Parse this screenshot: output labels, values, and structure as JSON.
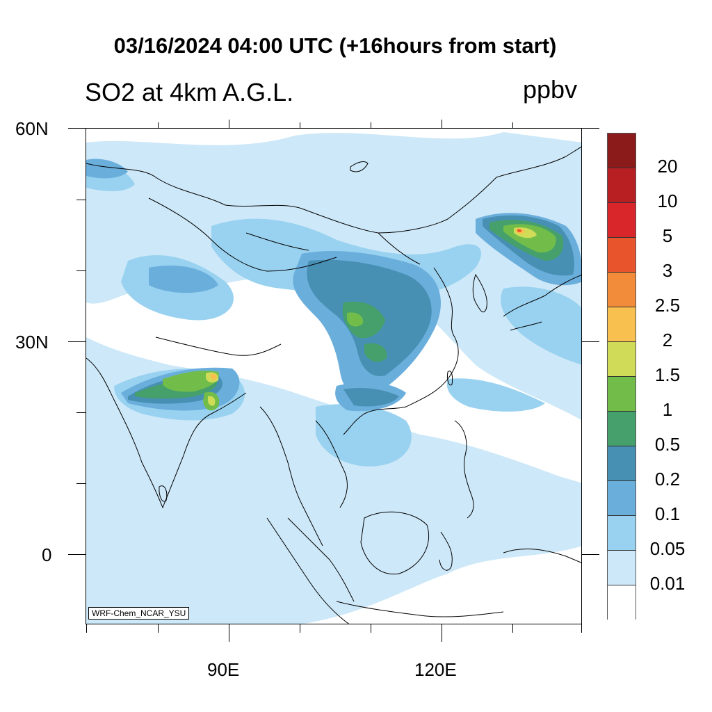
{
  "title": "03/16/2024 04:00 UTC (+16hours from start)",
  "subtitle": "SO2 at 4km A.G.L.",
  "units": "ppbv",
  "credit": "WRF-Chem_NCAR_YSU",
  "lat_labels": [
    "60N",
    "30N",
    "0"
  ],
  "lon_labels": [
    "90E",
    "120E"
  ],
  "colorbar": {
    "labels": [
      "20",
      "10",
      "5",
      "3",
      "2.5",
      "2",
      "1.5",
      "1",
      "0.5",
      "0.2",
      "0.1",
      "0.05",
      "0.01"
    ],
    "colors": [
      "#8b1a1a",
      "#b81f23",
      "#d9262a",
      "#e8552d",
      "#f28b3a",
      "#f8c04e",
      "#d0dc58",
      "#72bd4a",
      "#45a06b",
      "#4790b3",
      "#6aaedc",
      "#99d2f0",
      "#cde8f8",
      "#ffffff"
    ]
  },
  "colors": {
    "coast": "#000000",
    "c001": "#cde8f8",
    "c005": "#99d2f0",
    "c01": "#6aaedc",
    "c02": "#4790b3",
    "c05": "#45a06b",
    "c1": "#72bd4a",
    "c15": "#d0dc58",
    "c2": "#f8c04e",
    "c25": "#f28b3a",
    "c3": "#e8552d"
  }
}
